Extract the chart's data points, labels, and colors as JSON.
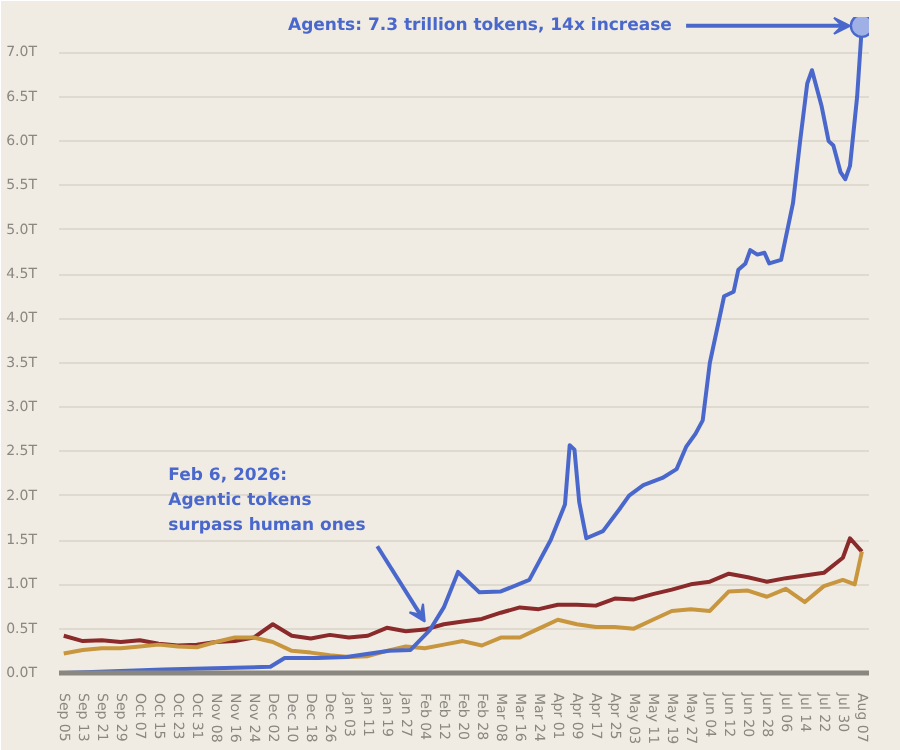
{
  "chart_data": {
    "type": "line",
    "xlim": [
      "2025-09-03",
      "2026-08-10"
    ],
    "ylim": [
      0,
      7.4
    ],
    "grid": "y",
    "yticks": [
      {
        "value": 0,
        "label": "0.0T"
      },
      {
        "value": 0.5,
        "label": "0.5T"
      },
      {
        "value": 1,
        "label": "1.0T"
      },
      {
        "value": 1.5,
        "label": "1.5T"
      },
      {
        "value": 2,
        "label": "2.0T"
      },
      {
        "value": 2.5,
        "label": "2.5T"
      },
      {
        "value": 3,
        "label": "3.0T"
      },
      {
        "value": 3.5,
        "label": "3.5T"
      },
      {
        "value": 4,
        "label": "4.0T"
      },
      {
        "value": 4.5,
        "label": "4.5T"
      },
      {
        "value": 5,
        "label": "5.0T"
      },
      {
        "value": 5.5,
        "label": "5.5T"
      },
      {
        "value": 6,
        "label": "6.0T"
      },
      {
        "value": 6.5,
        "label": "6.5T"
      },
      {
        "value": 7,
        "label": "7.0T"
      }
    ],
    "xticks": [
      {
        "value": "2025-09-05",
        "label": "Sep 05"
      },
      {
        "value": "2025-09-13",
        "label": "Sep 13"
      },
      {
        "value": "2025-09-21",
        "label": "Sep 21"
      },
      {
        "value": "2025-09-29",
        "label": "Sep 29"
      },
      {
        "value": "2025-10-07",
        "label": "Oct 07"
      },
      {
        "value": "2025-10-15",
        "label": "Oct 15"
      },
      {
        "value": "2025-10-23",
        "label": "Oct 23"
      },
      {
        "value": "2025-10-31",
        "label": "Oct 31"
      },
      {
        "value": "2025-11-08",
        "label": "Nov 08"
      },
      {
        "value": "2025-11-16",
        "label": "Nov 16"
      },
      {
        "value": "2025-11-24",
        "label": "Nov 24"
      },
      {
        "value": "2025-12-02",
        "label": "Dec 02"
      },
      {
        "value": "2025-12-10",
        "label": "Dec 10"
      },
      {
        "value": "2025-12-18",
        "label": "Dec 18"
      },
      {
        "value": "2025-12-26",
        "label": "Dec 26"
      },
      {
        "value": "2026-01-03",
        "label": "Jan 03"
      },
      {
        "value": "2026-01-11",
        "label": "Jan 11"
      },
      {
        "value": "2026-01-19",
        "label": "Jan 19"
      },
      {
        "value": "2026-01-27",
        "label": "Jan 27"
      },
      {
        "value": "2026-02-04",
        "label": "Feb 04"
      },
      {
        "value": "2026-02-12",
        "label": "Feb 12"
      },
      {
        "value": "2026-02-20",
        "label": "Feb 20"
      },
      {
        "value": "2026-02-28",
        "label": "Feb 28"
      },
      {
        "value": "2026-03-08",
        "label": "Mar 08"
      },
      {
        "value": "2026-03-16",
        "label": "Mar 16"
      },
      {
        "value": "2026-03-24",
        "label": "Mar 24"
      },
      {
        "value": "2026-04-01",
        "label": "Apr 01"
      },
      {
        "value": "2026-04-09",
        "label": "Apr 09"
      },
      {
        "value": "2026-04-17",
        "label": "Apr 17"
      },
      {
        "value": "2026-04-25",
        "label": "Apr 25"
      },
      {
        "value": "2026-05-03",
        "label": "May 03"
      },
      {
        "value": "2026-05-11",
        "label": "May 11"
      },
      {
        "value": "2026-05-19",
        "label": "May 19"
      },
      {
        "value": "2026-05-27",
        "label": "May 27"
      },
      {
        "value": "2026-06-04",
        "label": "Jun 04"
      },
      {
        "value": "2026-06-12",
        "label": "Jun 12"
      },
      {
        "value": "2026-06-20",
        "label": "Jun 20"
      },
      {
        "value": "2026-06-28",
        "label": "Jun 28"
      },
      {
        "value": "2026-07-06",
        "label": "Jul 06"
      },
      {
        "value": "2026-07-14",
        "label": "Jul 14"
      },
      {
        "value": "2026-07-22",
        "label": "Jul 22"
      },
      {
        "value": "2026-07-30",
        "label": "Jul 30"
      },
      {
        "value": "2026-08-07",
        "label": "Aug 07"
      }
    ],
    "annotations": [
      {
        "text": "Agents: 7.3 trillion tokens, 14x increase",
        "x": "2026-08-07",
        "y": 7.3
      },
      {
        "text": "Feb 6, 2026:\nAgentic tokens\nsurpass human ones",
        "x": "2026-02-06",
        "y": 0.48
      }
    ],
    "series": [
      {
        "color": "#8b2a2a",
        "x": [
          "2025-09-05",
          "2025-09-13",
          "2025-09-21",
          "2025-09-29",
          "2025-10-07",
          "2025-10-15",
          "2025-10-23",
          "2025-10-31",
          "2025-11-08",
          "2025-11-16",
          "2025-11-24",
          "2025-12-02",
          "2025-12-10",
          "2025-12-18",
          "2025-12-26",
          "2026-01-03",
          "2026-01-11",
          "2026-01-19",
          "2026-01-27",
          "2026-02-04",
          "2026-02-12",
          "2026-02-20",
          "2026-02-28",
          "2026-03-08",
          "2026-03-16",
          "2026-03-24",
          "2026-04-01",
          "2026-04-09",
          "2026-04-17",
          "2026-04-25",
          "2026-05-03",
          "2026-05-11",
          "2026-05-19",
          "2026-05-27",
          "2026-06-04",
          "2026-06-12",
          "2026-06-20",
          "2026-06-28",
          "2026-07-06",
          "2026-07-14",
          "2026-07-22",
          "2026-07-30",
          "2026-08-02",
          "2026-08-07"
        ],
        "values": [
          0.42,
          0.36,
          0.37,
          0.35,
          0.37,
          0.33,
          0.31,
          0.32,
          0.35,
          0.36,
          0.4,
          0.55,
          0.42,
          0.39,
          0.43,
          0.4,
          0.42,
          0.51,
          0.47,
          0.49,
          0.55,
          0.58,
          0.61,
          0.68,
          0.74,
          0.72,
          0.77,
          0.77,
          0.76,
          0.84,
          0.83,
          0.89,
          0.94,
          1.0,
          1.03,
          1.12,
          1.08,
          1.03,
          1.07,
          1.1,
          1.13,
          1.3,
          1.52,
          1.37
        ]
      },
      {
        "color": "#c8963e",
        "x": [
          "2025-09-05",
          "2025-09-13",
          "2025-09-21",
          "2025-09-29",
          "2025-10-07",
          "2025-10-15",
          "2025-10-23",
          "2025-10-31",
          "2025-11-08",
          "2025-11-16",
          "2025-11-24",
          "2025-12-02",
          "2025-12-10",
          "2025-12-18",
          "2025-12-26",
          "2026-01-03",
          "2026-01-11",
          "2026-01-19",
          "2026-01-27",
          "2026-02-04",
          "2026-02-12",
          "2026-02-20",
          "2026-02-28",
          "2026-03-08",
          "2026-03-16",
          "2026-03-24",
          "2026-04-01",
          "2026-04-09",
          "2026-04-17",
          "2026-04-25",
          "2026-05-03",
          "2026-05-11",
          "2026-05-19",
          "2026-05-27",
          "2026-06-04",
          "2026-06-12",
          "2026-06-20",
          "2026-06-28",
          "2026-07-06",
          "2026-07-14",
          "2026-07-22",
          "2026-07-30",
          "2026-08-04",
          "2026-08-07"
        ],
        "values": [
          0.22,
          0.26,
          0.28,
          0.28,
          0.3,
          0.32,
          0.3,
          0.29,
          0.35,
          0.4,
          0.4,
          0.35,
          0.25,
          0.23,
          0.2,
          0.18,
          0.19,
          0.25,
          0.3,
          0.28,
          0.32,
          0.36,
          0.31,
          0.4,
          0.4,
          0.5,
          0.6,
          0.55,
          0.52,
          0.52,
          0.5,
          0.6,
          0.7,
          0.72,
          0.7,
          0.92,
          0.93,
          0.86,
          0.95,
          0.8,
          0.98,
          1.05,
          1.0,
          1.37
        ]
      },
      {
        "color": "#4a68cc",
        "x": [
          "2025-09-05",
          "2025-10-17",
          "2025-11-16",
          "2025-12-01",
          "2025-12-07",
          "2025-12-21",
          "2026-01-02",
          "2026-01-20",
          "2026-01-29",
          "2026-02-06",
          "2026-02-12",
          "2026-02-18",
          "2026-02-27",
          "2026-03-08",
          "2026-03-20",
          "2026-03-29",
          "2026-04-01",
          "2026-04-04",
          "2026-04-06",
          "2026-04-08",
          "2026-04-10",
          "2026-04-13",
          "2026-04-20",
          "2026-04-27",
          "2026-05-01",
          "2026-05-07",
          "2026-05-15",
          "2026-05-21",
          "2026-05-25",
          "2026-05-29",
          "2026-06-01",
          "2026-06-04",
          "2026-06-10",
          "2026-06-14",
          "2026-06-16",
          "2026-06-19",
          "2026-06-21",
          "2026-06-24",
          "2026-06-27",
          "2026-06-29",
          "2026-07-04",
          "2026-07-09",
          "2026-07-12",
          "2026-07-15",
          "2026-07-17",
          "2026-07-21",
          "2026-07-24",
          "2026-07-26",
          "2026-07-29",
          "2026-07-31",
          "2026-08-02",
          "2026-08-05",
          "2026-08-07"
        ],
        "values": [
          0.0,
          0.04,
          0.06,
          0.07,
          0.17,
          0.17,
          0.18,
          0.25,
          0.26,
          0.48,
          0.74,
          1.14,
          0.91,
          0.92,
          1.05,
          1.5,
          1.7,
          1.9,
          2.57,
          2.52,
          1.93,
          1.52,
          1.6,
          1.85,
          2.0,
          2.12,
          2.2,
          2.3,
          2.55,
          2.7,
          2.85,
          3.5,
          4.25,
          4.3,
          4.55,
          4.62,
          4.77,
          4.72,
          4.74,
          4.62,
          4.66,
          5.3,
          6.0,
          6.65,
          6.8,
          6.4,
          6.0,
          5.95,
          5.65,
          5.57,
          5.72,
          6.5,
          7.3
        ]
      }
    ]
  }
}
